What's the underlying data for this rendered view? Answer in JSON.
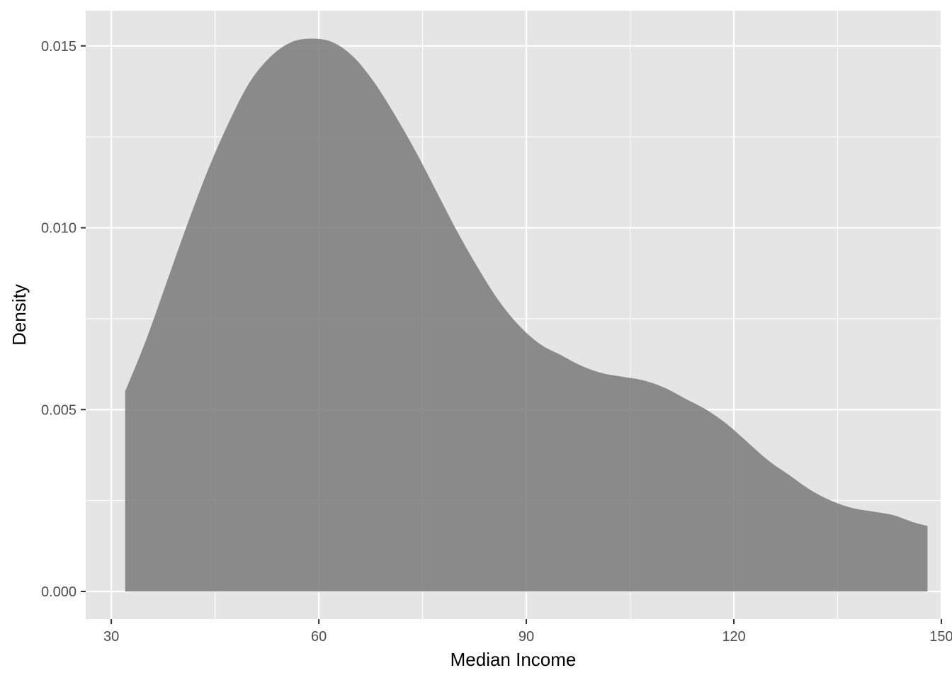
{
  "chart_data": {
    "type": "area",
    "title": "",
    "xlabel": "Median Income",
    "ylabel": "Density",
    "xlim": [
      26.3,
      149.9
    ],
    "ylim": [
      -0.00076,
      0.01597
    ],
    "x_ticks": [
      30,
      60,
      90,
      120,
      150
    ],
    "x_tick_labels": [
      "30",
      "60",
      "90",
      "120",
      "150"
    ],
    "y_ticks": [
      0.0,
      0.005,
      0.01,
      0.015
    ],
    "y_tick_labels": [
      "0.000",
      "0.005",
      "0.010",
      "0.015"
    ],
    "x_minor_ticks": [
      45,
      75,
      105,
      135
    ],
    "y_minor_ticks": [
      0.0025,
      0.0075,
      0.0125
    ],
    "grid": true,
    "legend": "none",
    "colors": {
      "panel": "#e5e5e5",
      "grid": "#ffffff",
      "fill": "#7a7a7a",
      "fill_opacity": 0.85
    },
    "series": [
      {
        "x": [
          32,
          35,
          38,
          41,
          44,
          47,
          50,
          53,
          56,
          59,
          62,
          65,
          68,
          71,
          74,
          77,
          80,
          83,
          86,
          89,
          92,
          95,
          98,
          101,
          104,
          107,
          110,
          113,
          116,
          119,
          122,
          125,
          128,
          131,
          134,
          137,
          140,
          143,
          146,
          148
        ],
        "y": [
          0.0055,
          0.0069,
          0.0085,
          0.0101,
          0.0116,
          0.0129,
          0.014,
          0.0147,
          0.0151,
          0.0152,
          0.0151,
          0.0147,
          0.014,
          0.0131,
          0.0121,
          0.011,
          0.0099,
          0.0089,
          0.008,
          0.0073,
          0.0068,
          0.0065,
          0.0062,
          0.006,
          0.0059,
          0.0058,
          0.0056,
          0.0053,
          0.005,
          0.0046,
          0.0041,
          0.0036,
          0.0032,
          0.0028,
          0.0025,
          0.0023,
          0.0022,
          0.0021,
          0.0019,
          0.0018
        ]
      }
    ]
  }
}
